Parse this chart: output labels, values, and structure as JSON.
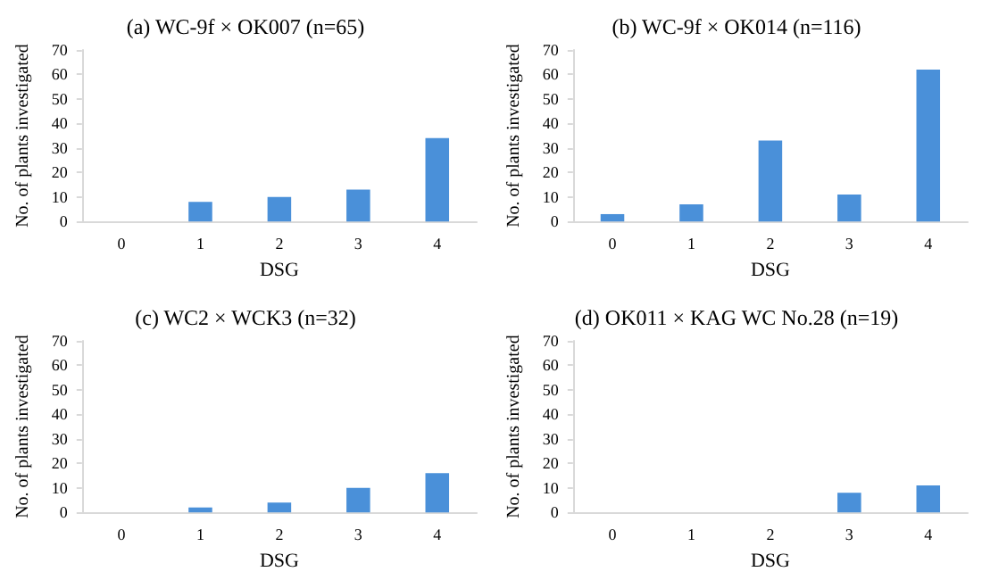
{
  "chart_data": [
    {
      "type": "bar",
      "title": "(a) WC-9f × OK007 (n=65)",
      "xlabel": "DSG",
      "ylabel": "No. of plants investigated",
      "categories": [
        "0",
        "1",
        "2",
        "3",
        "4"
      ],
      "values": [
        0,
        8,
        10,
        13,
        34
      ],
      "color": "#4a90d9",
      "ylim": [
        0,
        70
      ],
      "yticks": [
        0,
        10,
        20,
        30,
        40,
        50,
        60,
        70
      ],
      "grid": false
    },
    {
      "type": "bar",
      "title": "(b) WC-9f × OK014 (n=116)",
      "xlabel": "DSG",
      "ylabel": "No. of plants investigated",
      "categories": [
        "0",
        "1",
        "2",
        "3",
        "4"
      ],
      "values": [
        3,
        7,
        33,
        11,
        62
      ],
      "color": "#4a90d9",
      "ylim": [
        0,
        70
      ],
      "yticks": [
        0,
        10,
        20,
        30,
        40,
        50,
        60,
        70
      ],
      "grid": false
    },
    {
      "type": "bar",
      "title": "(c) WC2 × WCK3 (n=32)",
      "xlabel": "DSG",
      "ylabel": "No. of plants investigated",
      "categories": [
        "0",
        "1",
        "2",
        "3",
        "4"
      ],
      "values": [
        0,
        2,
        4,
        10,
        16
      ],
      "color": "#4a90d9",
      "ylim": [
        0,
        70
      ],
      "yticks": [
        0,
        10,
        20,
        30,
        40,
        50,
        60,
        70
      ],
      "grid": false
    },
    {
      "type": "bar",
      "title": "(d) OK011 × KAG WC No.28 (n=19)",
      "xlabel": "DSG",
      "ylabel": "No. of plants investigated",
      "categories": [
        "0",
        "1",
        "2",
        "3",
        "4"
      ],
      "values": [
        0,
        0,
        0,
        8,
        11
      ],
      "color": "#4a90d9",
      "ylim": [
        0,
        70
      ],
      "yticks": [
        0,
        10,
        20,
        30,
        40,
        50,
        60,
        70
      ],
      "grid": false
    }
  ]
}
